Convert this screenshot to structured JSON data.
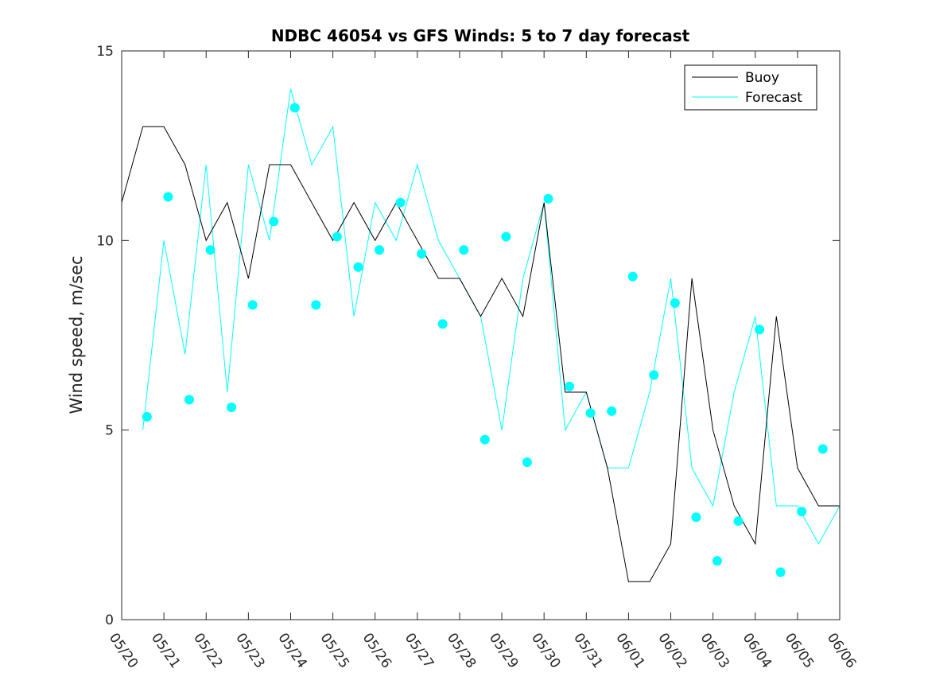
{
  "chart_data": {
    "type": "line",
    "title": "NDBC 46054 vs GFS Winds: 5 to 7 day forecast",
    "xlabel": "",
    "ylabel": "Wind speed, m/sec",
    "x_ticks": [
      "05/20",
      "05/21",
      "05/22",
      "05/23",
      "05/24",
      "05/25",
      "05/26",
      "05/27",
      "05/28",
      "05/29",
      "05/30",
      "05/31",
      "06/01",
      "06/02",
      "06/03",
      "06/04",
      "06/05",
      "06/06"
    ],
    "x_range_days": [
      0,
      17
    ],
    "ylim": [
      0,
      15
    ],
    "y_ticks": [
      0,
      5,
      10,
      15
    ],
    "legend": {
      "position": "top-right",
      "entries": [
        "Buoy",
        "Forecast"
      ]
    },
    "colors": {
      "buoy": "#000000",
      "forecast": "#00ffff",
      "axis": "#262626"
    },
    "series": [
      {
        "name": "Buoy",
        "x_days": [
          0.0,
          0.5,
          1.0,
          1.5,
          2.0,
          2.5,
          3.0,
          3.5,
          4.0,
          4.5,
          5.0,
          5.5,
          6.0,
          6.5,
          7.0,
          7.5,
          8.0,
          8.5,
          9.0,
          9.5,
          10.0,
          10.5,
          11.0,
          11.5,
          12.0,
          12.5,
          13.0,
          13.5,
          14.0,
          14.5,
          15.0,
          15.5,
          16.0,
          16.5,
          17.0
        ],
        "values": [
          11,
          13,
          13,
          12,
          10,
          11,
          9,
          12,
          12,
          11,
          10,
          11,
          10,
          11,
          10,
          9,
          9,
          8,
          9,
          8,
          11,
          6,
          6,
          4,
          1,
          1,
          2,
          9,
          5,
          3,
          2,
          8,
          4,
          3,
          3
        ]
      },
      {
        "name": "Forecast",
        "x_days": [
          0.0,
          0.5,
          1.0,
          1.5,
          2.0,
          2.5,
          3.0,
          3.5,
          4.0,
          4.5,
          5.0,
          5.5,
          6.0,
          6.5,
          7.0,
          7.5,
          8.0,
          8.5,
          9.0,
          9.5,
          10.0,
          10.5,
          11.0,
          11.5,
          12.0,
          12.5,
          13.0,
          13.5,
          14.0,
          14.5,
          15.0,
          15.5,
          16.0,
          16.5,
          17.0
        ],
        "values": [
          null,
          5,
          10,
          7,
          12,
          6,
          12,
          10,
          14,
          12,
          13,
          8,
          11,
          10,
          12,
          10,
          9,
          8,
          5,
          9,
          11,
          5,
          6,
          4,
          4,
          6,
          9,
          4,
          3,
          6,
          8,
          3,
          3,
          2,
          3
        ]
      },
      {
        "name": "Forecast points",
        "x_days": [
          0.6,
          1.1,
          1.6,
          2.1,
          2.6,
          3.1,
          3.6,
          4.1,
          4.6,
          5.1,
          5.6,
          6.1,
          6.6,
          7.1,
          7.6,
          8.1,
          8.6,
          9.1,
          9.6,
          10.1,
          10.6,
          11.1,
          11.6,
          12.1,
          12.6,
          13.1,
          13.6,
          14.1,
          14.6,
          15.1,
          15.6,
          16.1,
          16.6
        ],
        "values": [
          5.35,
          11.15,
          5.8,
          9.75,
          5.6,
          8.3,
          10.5,
          13.5,
          8.3,
          10.1,
          9.3,
          9.75,
          11,
          9.65,
          7.8,
          9.75,
          4.75,
          10.1,
          4.15,
          11.1,
          6.15,
          5.45,
          5.5,
          9.05,
          6.45,
          8.35,
          2.7,
          1.55,
          2.6,
          7.65,
          1.25,
          2.85,
          4.5
        ]
      }
    ]
  }
}
